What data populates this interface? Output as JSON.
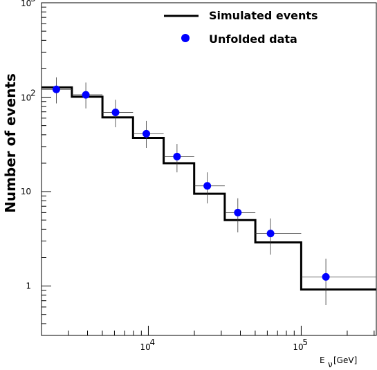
{
  "chart_data": {
    "type": "line",
    "title": "",
    "xlabel": "E_ν [GeV]",
    "xlabel_main": "E",
    "xlabel_sub": "ν",
    "xlabel_unit": "[GeV]",
    "ylabel": "Number of events",
    "x_scale": "log",
    "y_scale": "log",
    "xlim": [
      2000,
      310000
    ],
    "ylim": [
      0.3,
      1000
    ],
    "x_tick_labels": [
      {
        "value": 10000,
        "base": "10",
        "exp": "4"
      },
      {
        "value": 100000,
        "base": "10",
        "exp": "5"
      }
    ],
    "y_tick_labels": [
      {
        "value": 1,
        "text": "1"
      },
      {
        "value": 10,
        "text": "10"
      },
      {
        "value": 100,
        "base": "10",
        "exp": "2"
      },
      {
        "value": 1000,
        "base": "10",
        "exp": "3"
      }
    ],
    "grid": false,
    "legend_position": "top-right",
    "series": [
      {
        "name": "Simulated events",
        "kind": "step-histogram",
        "color": "#000000",
        "bin_edges": [
          2000,
          3160,
          5010,
          7940,
          12590,
          19950,
          31620,
          50120,
          100000,
          310000
        ],
        "values": [
          127,
          101,
          61,
          37,
          20,
          9.5,
          5.0,
          2.9,
          0.92
        ]
      },
      {
        "name": "Unfolded data",
        "kind": "points-with-errors",
        "color": "#0000ff",
        "points": [
          {
            "x": 2500,
            "y": 121,
            "x_lo": 2000,
            "x_hi": 3160,
            "y_lo": 86,
            "y_hi": 162
          },
          {
            "x": 3900,
            "y": 106,
            "x_lo": 3160,
            "x_hi": 5010,
            "y_lo": 76,
            "y_hi": 143
          },
          {
            "x": 6100,
            "y": 69,
            "x_lo": 5010,
            "x_hi": 7940,
            "y_lo": 48,
            "y_hi": 94
          },
          {
            "x": 9700,
            "y": 41,
            "x_lo": 7940,
            "x_hi": 12590,
            "y_lo": 29,
            "y_hi": 56
          },
          {
            "x": 15400,
            "y": 23.5,
            "x_lo": 12590,
            "x_hi": 19950,
            "y_lo": 16,
            "y_hi": 32
          },
          {
            "x": 24300,
            "y": 11.5,
            "x_lo": 19950,
            "x_hi": 31620,
            "y_lo": 7.5,
            "y_hi": 16
          },
          {
            "x": 38500,
            "y": 6.0,
            "x_lo": 31620,
            "x_hi": 50120,
            "y_lo": 3.7,
            "y_hi": 8.5
          },
          {
            "x": 63000,
            "y": 3.6,
            "x_lo": 50120,
            "x_hi": 100000,
            "y_lo": 2.15,
            "y_hi": 5.2
          },
          {
            "x": 145000,
            "y": 1.25,
            "x_lo": 100000,
            "x_hi": 310000,
            "y_lo": 0.63,
            "y_hi": 1.95
          }
        ]
      }
    ]
  }
}
